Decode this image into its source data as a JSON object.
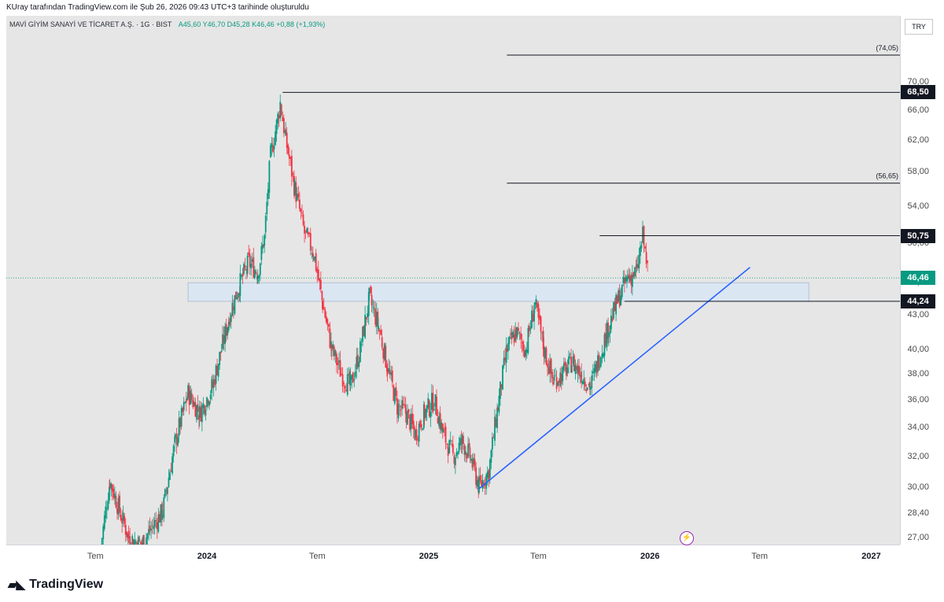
{
  "header": {
    "created_by": "KUray tarafından TradingView.com ile Şub 26, 2026 09:43 UTC+3 tarihinde oluşturuldu"
  },
  "symbol": {
    "name": "MAVİ GİYİM SANAYİ VE TİCARET A.Ş. · 1G · BIST",
    "ohlc": "A45,60 Y46,70 D45,28 K46,46 +0,88 (+1,93%)"
  },
  "currency": "TRY",
  "colors": {
    "up": "#089981",
    "down": "#f23645",
    "trendline": "#2962ff",
    "zone_fill": "#dbe6f3",
    "current_tag": "#089981",
    "level_tag": "#131722"
  },
  "chart_data": {
    "type": "candlestick",
    "y_scale": "log",
    "ylim": [
      26.6,
      80.4
    ],
    "price_ticks": [
      "70,00",
      "66,00",
      "62,00",
      "58,00",
      "54,00",
      "50,00",
      "46,00",
      "43,00",
      "40,00",
      "38,00",
      "36,00",
      "34,00",
      "32,00",
      "30,00",
      "28,40",
      "27,00"
    ],
    "time_ticks": [
      {
        "label": "Tem",
        "bold": false
      },
      {
        "label": "2024",
        "bold": true
      },
      {
        "label": "Tem",
        "bold": false
      },
      {
        "label": "2025",
        "bold": true
      },
      {
        "label": "Tem",
        "bold": false
      },
      {
        "label": "2026",
        "bold": true
      },
      {
        "label": "Tem",
        "bold": false
      },
      {
        "label": "2027",
        "bold": true
      }
    ],
    "close_path": [
      [
        "2023-07-10",
        26.5
      ],
      [
        "2023-07-25",
        30.4
      ],
      [
        "2023-08-10",
        28.5
      ],
      [
        "2023-08-25",
        27.0
      ],
      [
        "2023-09-15",
        26.6
      ],
      [
        "2023-10-01",
        27.5
      ],
      [
        "2023-10-20",
        28.5
      ],
      [
        "2023-11-10",
        33.0
      ],
      [
        "2023-12-01",
        36.5
      ],
      [
        "2023-12-20",
        35.0
      ],
      [
        "2024-01-10",
        37.0
      ],
      [
        "2024-01-25",
        40.0
      ],
      [
        "2024-02-10",
        43.5
      ],
      [
        "2024-02-25",
        46.0
      ],
      [
        "2024-03-10",
        48.0
      ],
      [
        "2024-03-25",
        47.0
      ],
      [
        "2024-04-05",
        50.5
      ],
      [
        "2024-04-15",
        60.0
      ],
      [
        "2024-04-25",
        64.0
      ],
      [
        "2024-05-01",
        67.0
      ],
      [
        "2024-05-10",
        62.0
      ],
      [
        "2024-05-25",
        56.0
      ],
      [
        "2024-06-10",
        51.0
      ],
      [
        "2024-06-25",
        49.0
      ],
      [
        "2024-07-10",
        44.0
      ],
      [
        "2024-07-25",
        40.0
      ],
      [
        "2024-08-10",
        38.0
      ],
      [
        "2024-08-25",
        37.0
      ],
      [
        "2024-09-10",
        40.0
      ],
      [
        "2024-09-25",
        44.5
      ],
      [
        "2024-10-10",
        42.0
      ],
      [
        "2024-10-25",
        38.5
      ],
      [
        "2024-11-10",
        35.5
      ],
      [
        "2024-11-25",
        35.0
      ],
      [
        "2024-12-10",
        33.5
      ],
      [
        "2024-12-25",
        35.0
      ],
      [
        "2025-01-10",
        36.0
      ],
      [
        "2025-01-25",
        33.5
      ],
      [
        "2025-02-10",
        32.0
      ],
      [
        "2025-02-25",
        33.0
      ],
      [
        "2025-03-10",
        32.0
      ],
      [
        "2025-03-25",
        30.0
      ],
      [
        "2025-04-10",
        31.0
      ],
      [
        "2025-04-25",
        35.5
      ],
      [
        "2025-05-10",
        40.0
      ],
      [
        "2025-05-25",
        41.5
      ],
      [
        "2025-06-10",
        40.0
      ],
      [
        "2025-06-25",
        44.0
      ],
      [
        "2025-07-10",
        40.0
      ],
      [
        "2025-07-25",
        37.5
      ],
      [
        "2025-08-10",
        38.0
      ],
      [
        "2025-08-25",
        39.0
      ],
      [
        "2025-09-10",
        38.0
      ],
      [
        "2025-09-25",
        37.0
      ],
      [
        "2025-10-10",
        39.5
      ],
      [
        "2025-10-25",
        42.0
      ],
      [
        "2025-11-10",
        44.5
      ],
      [
        "2025-11-25",
        46.5
      ],
      [
        "2025-12-10",
        47.0
      ],
      [
        "2025-12-20",
        50.7
      ],
      [
        "2025-12-30",
        46.46
      ]
    ],
    "levels": [
      {
        "price": 74.05,
        "label": "(74,05)",
        "style": "text"
      },
      {
        "price": 68.5,
        "label": "68,50",
        "style": "tag"
      },
      {
        "price": 56.65,
        "label": "(56,65)",
        "style": "text"
      },
      {
        "price": 50.75,
        "label": "50,75",
        "style": "tag"
      },
      {
        "price": 44.24,
        "label": "44,24",
        "style": "tag"
      }
    ],
    "current_price": {
      "price": 46.46,
      "label": "46,46"
    },
    "zone": {
      "from": 44.24,
      "to": 46.0
    },
    "trendline": {
      "from": [
        "2025-03-25",
        29.9
      ],
      "to": [
        "2026-06-15",
        47.5
      ]
    }
  },
  "footer": {
    "brand": "TradingView"
  }
}
